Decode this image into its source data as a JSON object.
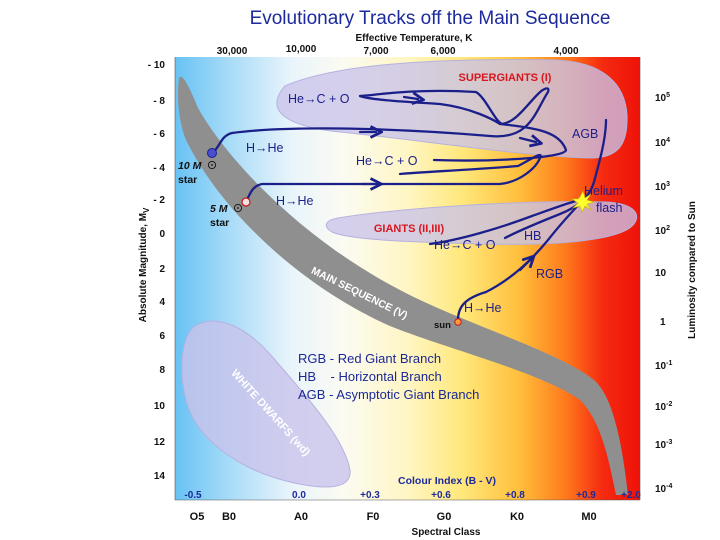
{
  "title": "Evolutionary Tracks off the Main Sequence",
  "top_axis": {
    "label": "Effective Temperature, K",
    "ticks": [
      "30,000",
      "10,000",
      "7,000",
      "6,000",
      "4,000"
    ]
  },
  "left_axis": {
    "label": "Absolute Magnitude, M",
    "label_sub": "V",
    "ticks": [
      "- 10",
      "- 8",
      "- 6",
      "- 4",
      "- 2",
      "0",
      "2",
      "4",
      "6",
      "8",
      "10",
      "12",
      "14"
    ]
  },
  "right_axis": {
    "label": "Luminosity compared to Sun",
    "ticks": [
      {
        "base": "10",
        "exp": "5"
      },
      {
        "base": "10",
        "exp": "4"
      },
      {
        "base": "10",
        "exp": "3"
      },
      {
        "base": "10",
        "exp": "2"
      },
      {
        "base": "10",
        "exp": ""
      },
      {
        "base": "1",
        "exp": ""
      },
      {
        "base": "10",
        "exp": "-1"
      },
      {
        "base": "10",
        "exp": "-2"
      },
      {
        "base": "10",
        "exp": "-3"
      },
      {
        "base": "10",
        "exp": "-4"
      }
    ]
  },
  "bottom_axis": {
    "label": "Spectral Class",
    "ticks": [
      "O5",
      "B0",
      "A0",
      "F0",
      "G0",
      "K0",
      "M0"
    ]
  },
  "colour_index": {
    "label": "Colour Index (B - V)",
    "ticks": [
      "-0.5",
      "0.0",
      "+0.3",
      "+0.6",
      "+0.8",
      "+0.9",
      "+2.0"
    ]
  },
  "regions": {
    "supergiants": "SUPERGIANTS (I)",
    "giants": "GIANTS (II,III)",
    "main_sequence": "MAIN SEQUENCE (V)",
    "white_dwarfs": "WHITE DWARFS (wd)"
  },
  "stars": {
    "ten": {
      "mass": "10 M",
      "label": "star"
    },
    "five": {
      "mass": "5 M",
      "label": "star"
    },
    "sun": "sun"
  },
  "track_labels": {
    "h_he_10": "H→He",
    "he_c_o_top": "He→C + O",
    "he_c_o_mid": "He→C + O",
    "h_he_5": "H→He",
    "he_c_o_hb": "He→C + O",
    "agb": "AGB",
    "hb": "HB",
    "rgb": "RGB",
    "h_he_sun": "H→He",
    "helium_flash_1": "Helium",
    "helium_flash_2": "flash"
  },
  "legend": [
    "RGB - Red Giant Branch",
    "HB    - Horizontal Branch",
    "AGB - Asymptotic Giant Branch"
  ],
  "colors": {
    "title": "#1c2a9c",
    "track": "#1b1f8a",
    "region_label": "#d8161e",
    "main_sequence": "#8f8f8f",
    "region_fill": "#c8c4ea"
  }
}
